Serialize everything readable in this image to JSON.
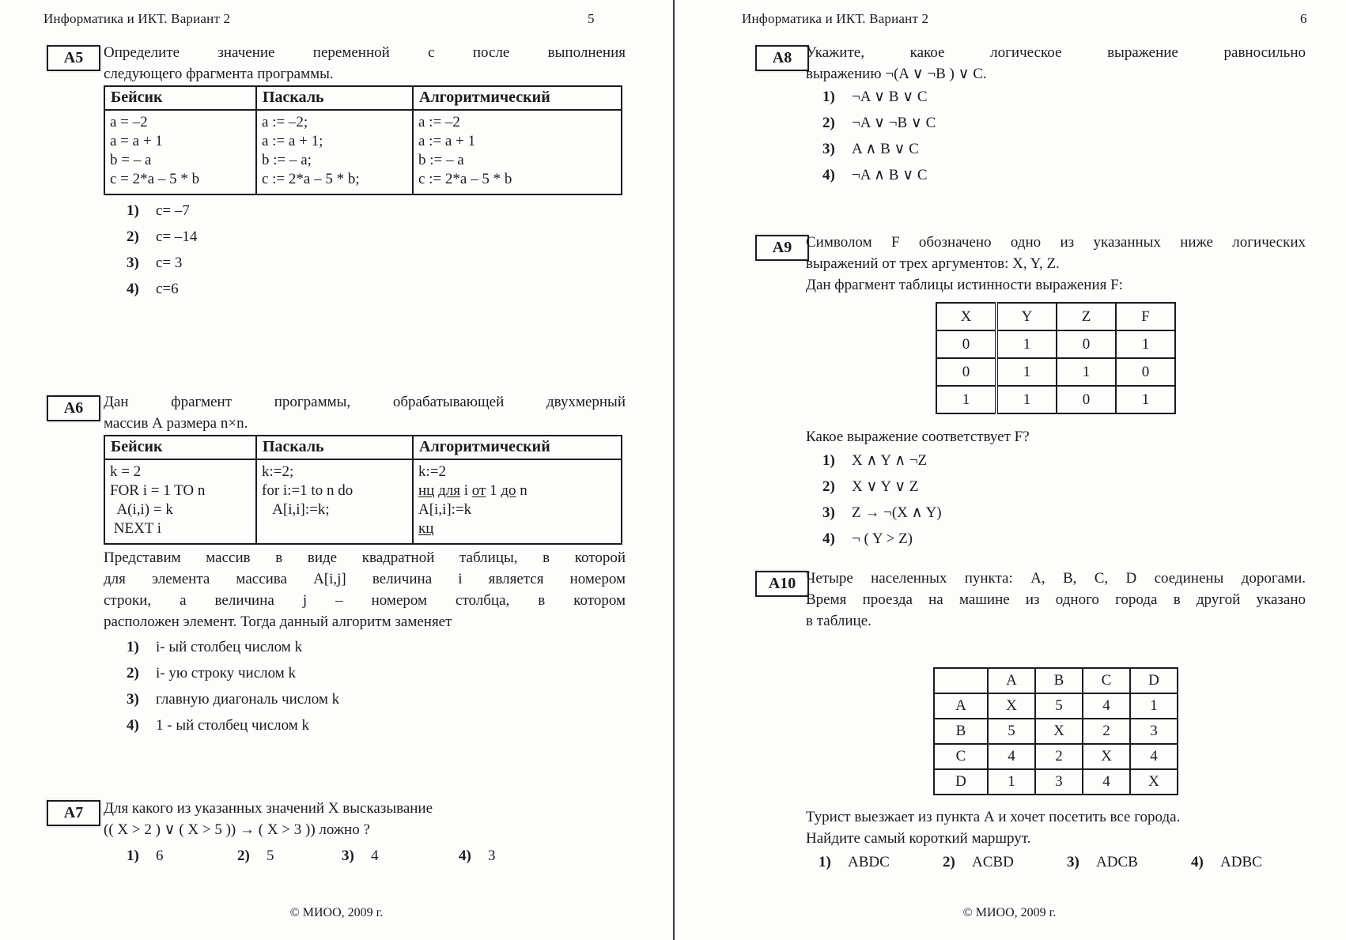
{
  "theme": {
    "paper": "#fdfdfc",
    "ink": "#1b1b1b"
  },
  "pages": {
    "left": {
      "header": "Информатика и ИКТ. Вариант 2",
      "page_number": "5",
      "footer": "© МИОО, 2009 г.",
      "q5": {
        "label": "А5",
        "text_lines": [
          "Определите значение переменной с после выполнения",
          "следующего фрагмента программы."
        ],
        "table": {
          "headers": [
            "Бейсик",
            "Паскаль",
            "Алгоритмический"
          ],
          "cols": [
            "a = –2\na = a + 1\nb = – a\nc = 2*a – 5 * b",
            "a := –2;\na := a + 1;\nb := – a;\nc := 2*a – 5 * b;",
            "a := –2\na := a + 1\nb := – a\nc := 2*a – 5 * b"
          ]
        },
        "options": [
          {
            "n": "1)",
            "t": "c= –7"
          },
          {
            "n": "2)",
            "t": "c= –14"
          },
          {
            "n": "3)",
            "t": "c= 3"
          },
          {
            "n": "4)",
            "t": "c=6"
          }
        ]
      },
      "q6": {
        "label": "А6",
        "text_lines": [
          "Дан фрагмент программы, обрабатывающей двухмерный",
          "массив А размера n×n."
        ],
        "table": {
          "headers": [
            "Бейсик",
            "Паскаль",
            "Алгоритмический"
          ],
          "cols": [
            "k = 2\nFOR i = 1 TO n\n  A(i,i) = k\n NEXT i",
            "k:=2;\nfor i:=1 to n do\n   A[i,i]:=k;"
          ],
          "col3_html": "k:=2<br><u>нц</u> <u>для</u> i <u>от</u> 1 <u>до</u> n<br>A[i,i]:=k<br><u>кц</u>"
        },
        "para_lines": [
          "Представим массив в виде квадратной таблицы, в которой",
          "для элемента массива A[i,j] величина i является номером",
          "строки, а величина j – номером столбца, в котором",
          "расположен элемент. Тогда данный алгоритм заменяет"
        ],
        "options": [
          {
            "n": "1)",
            "t": "i- ый столбец числом k"
          },
          {
            "n": "2)",
            "t": "i- ую строку числом k"
          },
          {
            "n": "3)",
            "t": "главную диагональ числом k"
          },
          {
            "n": "4)",
            "t": "1 - ый столбец числом k"
          }
        ]
      },
      "q7": {
        "label": "А7",
        "text_lines": [
          "Для какого из указанных значений X высказывание",
          "(( X > 2 ) ∨ ( X > 5 ))  →  ( X > 3 )) ложно ?"
        ],
        "options": [
          {
            "n": "1)",
            "t": "6"
          },
          {
            "n": "2)",
            "t": "5"
          },
          {
            "n": "3)",
            "t": "4"
          },
          {
            "n": "4)",
            "t": "3"
          }
        ]
      }
    },
    "right": {
      "header": "Информатика и ИКТ. Вариант 2",
      "page_number": "6",
      "footer": "© МИОО, 2009 г.",
      "q8": {
        "label": "А8",
        "text_lines": [
          "Укажите, какое логическое выражение равносильно",
          "выражению ¬(A ∨ ¬B ) ∨ C."
        ],
        "options": [
          {
            "n": "1)",
            "t": "¬A ∨ B ∨ C"
          },
          {
            "n": "2)",
            "t": "¬A ∨ ¬B ∨ C"
          },
          {
            "n": "3)",
            "t": "A ∧ B ∨ C"
          },
          {
            "n": "4)",
            "t": "¬A ∧ B ∨ C"
          }
        ]
      },
      "q9": {
        "label": "А9",
        "text_lines": [
          "Символом F обозначено одно из указанных ниже логических",
          "выражений от трех аргументов: X, Y, Z.",
          "Дан фрагмент таблицы истинности выражения F:"
        ],
        "truth_table": {
          "headers": [
            "X",
            "Y",
            "Z",
            "F"
          ],
          "rows": [
            [
              "0",
              "1",
              "0",
              "1"
            ],
            [
              "0",
              "1",
              "1",
              "0"
            ],
            [
              "1",
              "1",
              "0",
              "1"
            ]
          ]
        },
        "question": "Какое выражение соответствует F?",
        "options": [
          {
            "n": "1)",
            "t": "X ∧ Y ∧ ¬Z"
          },
          {
            "n": "2)",
            "t": "X ∨ Y ∨ Z"
          },
          {
            "n": "3)",
            "t": "Z → ¬(X ∧ Y)"
          },
          {
            "n": "4)",
            "t": "¬ ( Y > Z)"
          }
        ]
      },
      "q10": {
        "label": "А10",
        "text_lines": [
          "Четыре населенных пункта: A, B, C, D соединены дорогами.",
          "Время проезда на машине из одного города в другой указано",
          "в таблице."
        ],
        "matrix": {
          "corner": "",
          "col_headers": [
            "A",
            "B",
            "C",
            "D"
          ],
          "rows": [
            {
              "h": "A",
              "c": [
                "X",
                "5",
                "4",
                "1"
              ]
            },
            {
              "h": "B",
              "c": [
                "5",
                "X",
                "2",
                "3"
              ]
            },
            {
              "h": "C",
              "c": [
                "4",
                "2",
                "X",
                "4"
              ]
            },
            {
              "h": "D",
              "c": [
                "1",
                "3",
                "4",
                "X"
              ]
            }
          ]
        },
        "text2_lines": [
          "Турист выезжает из пункта А и хочет посетить все города.",
          "Найдите самый короткий маршрут."
        ],
        "options": [
          {
            "n": "1)",
            "t": "ABDC"
          },
          {
            "n": "2)",
            "t": "ACBD"
          },
          {
            "n": "3)",
            "t": "ADCB"
          },
          {
            "n": "4)",
            "t": "ADBC"
          }
        ]
      }
    }
  }
}
